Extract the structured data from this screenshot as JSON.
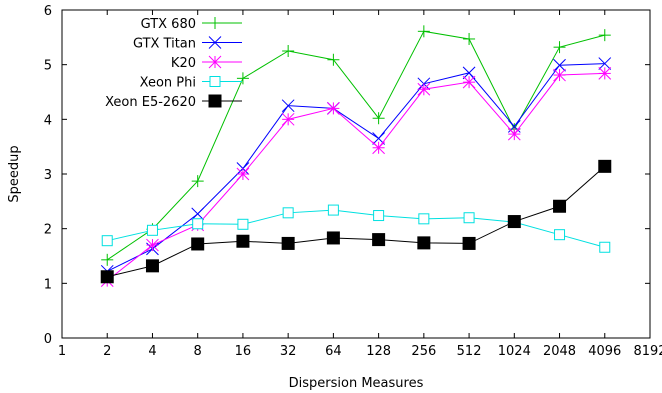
{
  "chart_data": {
    "type": "line",
    "xlabel": "Dispersion Measures",
    "ylabel": "Speedup",
    "x_scale": "log2",
    "xlim": [
      1,
      8192
    ],
    "ylim": [
      0,
      6
    ],
    "x_ticks": [
      "1",
      "2",
      "4",
      "8",
      "16",
      "32",
      "64",
      "128",
      "256",
      "512",
      "1024",
      "2048",
      "4096",
      "8192"
    ],
    "y_ticks": [
      "0",
      "1",
      "2",
      "3",
      "4",
      "5",
      "6"
    ],
    "x": [
      2,
      4,
      8,
      16,
      32,
      64,
      128,
      256,
      512,
      1024,
      2048,
      4096
    ],
    "grid": false,
    "legend_position": "top-left",
    "series": [
      {
        "name": "GTX 680",
        "color": "#00c000",
        "marker": "plus",
        "values": [
          1.43,
          1.99,
          2.87,
          4.75,
          5.25,
          5.09,
          4.02,
          5.61,
          5.47,
          3.82,
          5.32,
          5.54
        ]
      },
      {
        "name": "GTX Titan",
        "color": "#0000ff",
        "marker": "x",
        "values": [
          1.22,
          1.63,
          2.27,
          3.1,
          4.25,
          4.2,
          3.65,
          4.65,
          4.85,
          3.87,
          4.99,
          5.02
        ]
      },
      {
        "name": "K20",
        "color": "#ff00ff",
        "marker": "star",
        "values": [
          1.05,
          1.7,
          2.07,
          3.0,
          4.0,
          4.2,
          3.48,
          4.55,
          4.68,
          3.73,
          4.81,
          4.84
        ]
      },
      {
        "name": "Xeon Phi",
        "color": "#00e0e0",
        "marker": "open-square",
        "values": [
          1.78,
          1.97,
          2.09,
          2.08,
          2.29,
          2.34,
          2.24,
          2.18,
          2.2,
          2.12,
          1.89,
          1.66
        ]
      },
      {
        "name": "Xeon E5-2620",
        "color": "#000000",
        "marker": "filled-square",
        "values": [
          1.12,
          1.32,
          1.72,
          1.77,
          1.73,
          1.83,
          1.8,
          1.74,
          1.73,
          2.13,
          2.41,
          3.14
        ]
      }
    ]
  }
}
